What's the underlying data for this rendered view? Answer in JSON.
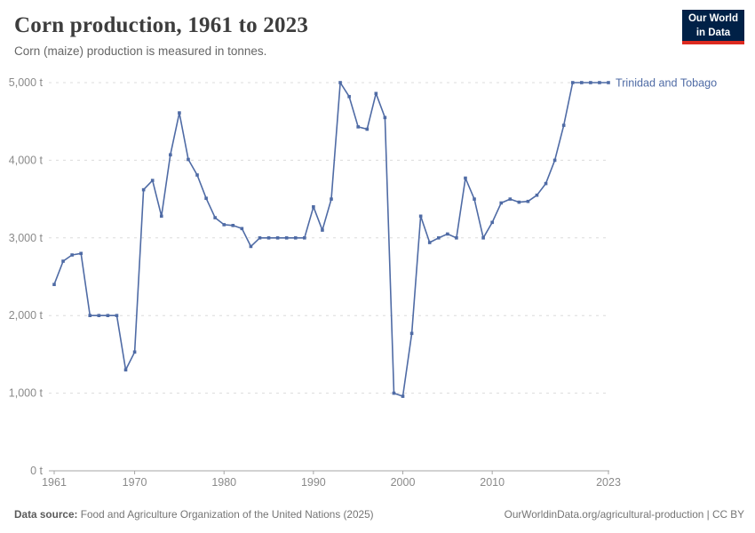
{
  "header": {
    "title": "Corn production, 1961 to 2023",
    "subtitle": "Corn (maize) production is measured in tonnes.",
    "logo": {
      "line1": "Our World",
      "line2": "in Data"
    }
  },
  "chart_data": {
    "type": "line",
    "title": "Corn production, 1961 to 2023",
    "unit": "tonnes",
    "xlim": [
      1961,
      2023
    ],
    "ylim": [
      0,
      5000
    ],
    "grid": "horizontal-dashed",
    "legend_position": "label-at-line-end",
    "x_ticks": [
      "1961",
      "1970",
      "1980",
      "1990",
      "2000",
      "2010",
      "2023"
    ],
    "y_ticks": [
      {
        "value": 0,
        "label": "0 t"
      },
      {
        "value": 1000,
        "label": "1,000 t"
      },
      {
        "value": 2000,
        "label": "2,000 t"
      },
      {
        "value": 3000,
        "label": "3,000 t"
      },
      {
        "value": 4000,
        "label": "4,000 t"
      },
      {
        "value": 5000,
        "label": "5,000 t"
      }
    ],
    "series": [
      {
        "name": "Trinidad and Tobago",
        "color": "#4f6ba5",
        "years": [
          1961,
          1962,
          1963,
          1964,
          1965,
          1966,
          1967,
          1968,
          1969,
          1970,
          1971,
          1972,
          1973,
          1974,
          1975,
          1976,
          1977,
          1978,
          1979,
          1980,
          1981,
          1982,
          1983,
          1984,
          1985,
          1986,
          1987,
          1988,
          1989,
          1990,
          1991,
          1992,
          1993,
          1994,
          1995,
          1996,
          1997,
          1998,
          1999,
          2000,
          2001,
          2002,
          2003,
          2004,
          2005,
          2006,
          2007,
          2008,
          2009,
          2010,
          2011,
          2012,
          2013,
          2014,
          2015,
          2016,
          2017,
          2018,
          2019,
          2020,
          2021,
          2022,
          2023
        ],
        "values": [
          2400,
          2700,
          2780,
          2800,
          2000,
          2000,
          2000,
          2000,
          1300,
          1530,
          3620,
          3740,
          3280,
          4070,
          4610,
          4010,
          3810,
          3510,
          3260,
          3170,
          3160,
          3120,
          2890,
          3000,
          3000,
          3000,
          3000,
          3000,
          3000,
          3400,
          3100,
          3500,
          5000,
          4820,
          4430,
          4400,
          4860,
          4550,
          1000,
          960,
          1770,
          3280,
          2940,
          3000,
          3050,
          3000,
          3770,
          3500,
          3000,
          3200,
          3450,
          3500,
          3460,
          3470,
          3550,
          3700,
          4000,
          4450,
          5000,
          5000,
          5000,
          5000,
          5000
        ]
      }
    ]
  },
  "colors": {
    "line": "#4f6ba5",
    "grid": "#dcdcdc",
    "axis": "#a5a5a5",
    "tick_text": "#8a8a8a",
    "logo_bg": "#002147",
    "logo_stripe": "#dc2a20"
  },
  "footer": {
    "source_label": "Data source:",
    "source_text": " Food and Agriculture Organization of the United Nations (2025)",
    "credit": "OurWorldinData.org/agricultural-production | CC BY"
  }
}
